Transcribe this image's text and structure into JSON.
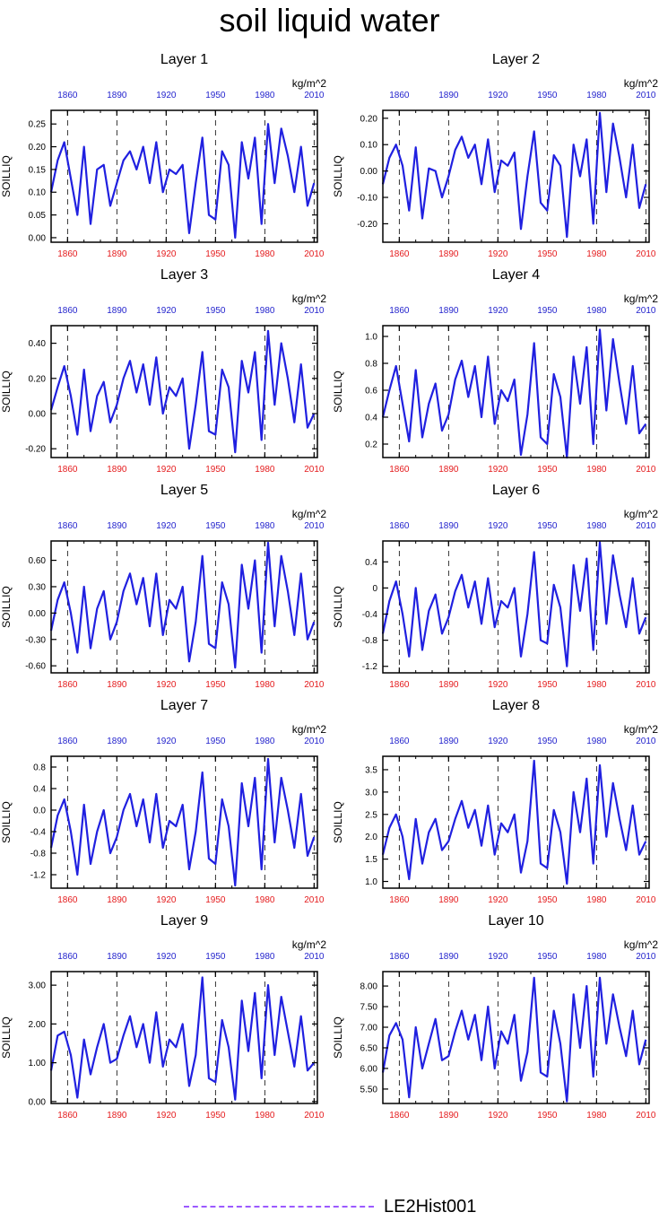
{
  "page": {
    "title": "soil liquid water"
  },
  "legend": {
    "label": "LE2Hist001",
    "color": "#9b59ff"
  },
  "colors": {
    "bottom_ticks": "#e41a1c",
    "top_ticks": "#1f1fcc",
    "series": "#2020e0",
    "axes": "#000000"
  },
  "chart_data": [
    {
      "type": "line",
      "title": "Layer 1",
      "ylabel": "SOILLIQ",
      "units": "kg/m^2",
      "xlim": [
        1850,
        2012
      ],
      "ylim": [
        -0.01,
        0.28
      ],
      "yticks": [
        0.0,
        0.05,
        0.1,
        0.15,
        0.2,
        0.25
      ],
      "ytick_labels": [
        "0.00",
        "0.05",
        "0.10",
        "0.15",
        "0.20",
        "0.25"
      ],
      "xticks": [
        "1860",
        "1890",
        "1920",
        "1950",
        "1980",
        "2010"
      ],
      "vlines": [
        1860,
        1890,
        1920,
        1950,
        1980,
        2010
      ],
      "x": [
        1850,
        1854,
        1858,
        1862,
        1866,
        1870,
        1874,
        1878,
        1882,
        1886,
        1890,
        1894,
        1898,
        1902,
        1906,
        1910,
        1914,
        1918,
        1922,
        1926,
        1930,
        1934,
        1938,
        1942,
        1946,
        1950,
        1954,
        1958,
        1962,
        1966,
        1970,
        1974,
        1978,
        1982,
        1986,
        1990,
        1994,
        1998,
        2002,
        2006,
        2010
      ],
      "y": [
        0.1,
        0.17,
        0.21,
        0.13,
        0.05,
        0.2,
        0.03,
        0.15,
        0.16,
        0.07,
        0.12,
        0.17,
        0.19,
        0.15,
        0.2,
        0.12,
        0.21,
        0.1,
        0.15,
        0.14,
        0.16,
        0.01,
        0.12,
        0.22,
        0.05,
        0.04,
        0.19,
        0.16,
        0.0,
        0.21,
        0.13,
        0.22,
        0.03,
        0.25,
        0.12,
        0.24,
        0.18,
        0.1,
        0.2,
        0.07,
        0.12
      ]
    },
    {
      "type": "line",
      "title": "Layer 2",
      "ylabel": "SOILLIQ",
      "units": "kg/m^2",
      "xlim": [
        1850,
        2012
      ],
      "ylim": [
        -0.27,
        0.23
      ],
      "yticks": [
        -0.2,
        -0.1,
        0.0,
        0.1,
        0.2
      ],
      "ytick_labels": [
        "-0.20",
        "-0.10",
        "0.00",
        "0.10",
        "0.20"
      ],
      "xticks": [
        "1860",
        "1890",
        "1920",
        "1950",
        "1980",
        "2010"
      ],
      "vlines": [
        1860,
        1890,
        1920,
        1950,
        1980,
        2010
      ],
      "x": [
        1850,
        1854,
        1858,
        1862,
        1866,
        1870,
        1874,
        1878,
        1882,
        1886,
        1890,
        1894,
        1898,
        1902,
        1906,
        1910,
        1914,
        1918,
        1922,
        1926,
        1930,
        1934,
        1938,
        1942,
        1946,
        1950,
        1954,
        1958,
        1962,
        1966,
        1970,
        1974,
        1978,
        1982,
        1986,
        1990,
        1994,
        1998,
        2002,
        2006,
        2010
      ],
      "y": [
        -0.05,
        0.05,
        0.1,
        0.02,
        -0.15,
        0.09,
        -0.18,
        0.01,
        0.0,
        -0.1,
        -0.02,
        0.08,
        0.13,
        0.05,
        0.1,
        -0.05,
        0.12,
        -0.08,
        0.04,
        0.02,
        0.07,
        -0.22,
        -0.02,
        0.15,
        -0.12,
        -0.15,
        0.06,
        0.02,
        -0.25,
        0.1,
        -0.02,
        0.12,
        -0.2,
        0.22,
        -0.08,
        0.18,
        0.05,
        -0.1,
        0.1,
        -0.14,
        -0.05
      ]
    },
    {
      "type": "line",
      "title": "Layer 3",
      "ylabel": "SOILLIQ",
      "units": "kg/m^2",
      "xlim": [
        1850,
        2012
      ],
      "ylim": [
        -0.25,
        0.5
      ],
      "yticks": [
        -0.2,
        0.0,
        0.2,
        0.4
      ],
      "ytick_labels": [
        "-0.20",
        "0.00",
        "0.20",
        "0.40"
      ],
      "xticks": [
        "1860",
        "1890",
        "1920",
        "1950",
        "1980",
        "2010"
      ],
      "vlines": [
        1860,
        1890,
        1920,
        1950,
        1980,
        2010
      ],
      "x": [
        1850,
        1854,
        1858,
        1862,
        1866,
        1870,
        1874,
        1878,
        1882,
        1886,
        1890,
        1894,
        1898,
        1902,
        1906,
        1910,
        1914,
        1918,
        1922,
        1926,
        1930,
        1934,
        1938,
        1942,
        1946,
        1950,
        1954,
        1958,
        1962,
        1966,
        1970,
        1974,
        1978,
        1982,
        1986,
        1990,
        1994,
        1998,
        2002,
        2006,
        2010
      ],
      "y": [
        0.02,
        0.15,
        0.27,
        0.1,
        -0.12,
        0.25,
        -0.1,
        0.1,
        0.18,
        -0.05,
        0.05,
        0.2,
        0.3,
        0.12,
        0.28,
        0.05,
        0.32,
        0.0,
        0.15,
        0.1,
        0.2,
        -0.2,
        0.05,
        0.35,
        -0.1,
        -0.12,
        0.25,
        0.15,
        -0.22,
        0.3,
        0.12,
        0.35,
        -0.15,
        0.47,
        0.05,
        0.4,
        0.2,
        -0.05,
        0.28,
        -0.08,
        0.0
      ]
    },
    {
      "type": "line",
      "title": "Layer 4",
      "ylabel": "SOILLIQ",
      "units": "kg/m^2",
      "xlim": [
        1850,
        2012
      ],
      "ylim": [
        0.1,
        1.08
      ],
      "yticks": [
        0.2,
        0.4,
        0.6,
        0.8,
        1.0
      ],
      "ytick_labels": [
        "0.2",
        "0.4",
        "0.6",
        "0.8",
        "1.0"
      ],
      "xticks": [
        "1860",
        "1890",
        "1920",
        "1950",
        "1980",
        "2010"
      ],
      "vlines": [
        1860,
        1890,
        1920,
        1950,
        1980,
        2010
      ],
      "x": [
        1850,
        1854,
        1858,
        1862,
        1866,
        1870,
        1874,
        1878,
        1882,
        1886,
        1890,
        1894,
        1898,
        1902,
        1906,
        1910,
        1914,
        1918,
        1922,
        1926,
        1930,
        1934,
        1938,
        1942,
        1946,
        1950,
        1954,
        1958,
        1962,
        1966,
        1970,
        1974,
        1978,
        1982,
        1986,
        1990,
        1994,
        1998,
        2002,
        2006,
        2010
      ],
      "y": [
        0.4,
        0.6,
        0.78,
        0.5,
        0.22,
        0.75,
        0.25,
        0.5,
        0.65,
        0.3,
        0.42,
        0.68,
        0.82,
        0.55,
        0.78,
        0.4,
        0.85,
        0.35,
        0.6,
        0.52,
        0.68,
        0.12,
        0.42,
        0.95,
        0.25,
        0.2,
        0.72,
        0.55,
        0.1,
        0.85,
        0.5,
        0.92,
        0.2,
        1.05,
        0.45,
        0.98,
        0.65,
        0.35,
        0.78,
        0.28,
        0.35
      ]
    },
    {
      "type": "line",
      "title": "Layer 5",
      "ylabel": "SOILLIQ",
      "units": "kg/m^2",
      "xlim": [
        1850,
        2012
      ],
      "ylim": [
        -0.68,
        0.82
      ],
      "yticks": [
        -0.6,
        -0.3,
        0.0,
        0.3,
        0.6
      ],
      "ytick_labels": [
        "-0.60",
        "-0.30",
        "0.00",
        "0.30",
        "0.60"
      ],
      "xticks": [
        "1860",
        "1890",
        "1920",
        "1950",
        "1980",
        "2010"
      ],
      "vlines": [
        1860,
        1890,
        1920,
        1950,
        1980,
        2010
      ],
      "x": [
        1850,
        1854,
        1858,
        1862,
        1866,
        1870,
        1874,
        1878,
        1882,
        1886,
        1890,
        1894,
        1898,
        1902,
        1906,
        1910,
        1914,
        1918,
        1922,
        1926,
        1930,
        1934,
        1938,
        1942,
        1946,
        1950,
        1954,
        1958,
        1962,
        1966,
        1970,
        1974,
        1978,
        1982,
        1986,
        1990,
        1994,
        1998,
        2002,
        2006,
        2010
      ],
      "y": [
        -0.2,
        0.15,
        0.35,
        0.0,
        -0.45,
        0.3,
        -0.4,
        0.05,
        0.25,
        -0.3,
        -0.1,
        0.25,
        0.45,
        0.1,
        0.4,
        -0.15,
        0.45,
        -0.25,
        0.15,
        0.05,
        0.3,
        -0.55,
        -0.1,
        0.65,
        -0.35,
        -0.4,
        0.35,
        0.1,
        -0.62,
        0.55,
        0.05,
        0.6,
        -0.45,
        0.8,
        -0.15,
        0.65,
        0.25,
        -0.25,
        0.45,
        -0.3,
        -0.1
      ]
    },
    {
      "type": "line",
      "title": "Layer 6",
      "ylabel": "SOILLIQ",
      "units": "kg/m^2",
      "xlim": [
        1850,
        2012
      ],
      "ylim": [
        -1.3,
        0.72
      ],
      "yticks": [
        -1.2,
        -0.8,
        -0.4,
        0.0,
        0.4
      ],
      "ytick_labels": [
        "-1.2",
        "-0.8",
        "-0.4",
        "0",
        "0.4"
      ],
      "xticks": [
        "1860",
        "1890",
        "1920",
        "1950",
        "1980",
        "2010"
      ],
      "vlines": [
        1860,
        1890,
        1920,
        1950,
        1980,
        2010
      ],
      "x": [
        1850,
        1854,
        1858,
        1862,
        1866,
        1870,
        1874,
        1878,
        1882,
        1886,
        1890,
        1894,
        1898,
        1902,
        1906,
        1910,
        1914,
        1918,
        1922,
        1926,
        1930,
        1934,
        1938,
        1942,
        1946,
        1950,
        1954,
        1958,
        1962,
        1966,
        1970,
        1974,
        1978,
        1982,
        1986,
        1990,
        1994,
        1998,
        2002,
        2006,
        2010
      ],
      "y": [
        -0.7,
        -0.2,
        0.1,
        -0.4,
        -1.05,
        0.0,
        -0.95,
        -0.35,
        -0.1,
        -0.7,
        -0.45,
        -0.05,
        0.2,
        -0.3,
        0.1,
        -0.55,
        0.15,
        -0.6,
        -0.2,
        -0.3,
        0.0,
        -1.05,
        -0.4,
        0.55,
        -0.8,
        -0.85,
        0.05,
        -0.3,
        -1.2,
        0.35,
        -0.35,
        0.45,
        -0.95,
        0.7,
        -0.55,
        0.5,
        -0.1,
        -0.6,
        0.15,
        -0.7,
        -0.45
      ]
    },
    {
      "type": "line",
      "title": "Layer 7",
      "ylabel": "SOILLIQ",
      "units": "kg/m^2",
      "xlim": [
        1850,
        2012
      ],
      "ylim": [
        -1.45,
        1.0
      ],
      "yticks": [
        -1.2,
        -0.8,
        -0.4,
        0.0,
        0.4,
        0.8
      ],
      "ytick_labels": [
        "-1.2",
        "-0.8",
        "-0.4",
        "0.0",
        "0.4",
        "0.8"
      ],
      "xticks": [
        "1860",
        "1890",
        "1920",
        "1950",
        "1980",
        "2010"
      ],
      "vlines": [
        1860,
        1890,
        1920,
        1950,
        1980,
        2010
      ],
      "x": [
        1850,
        1854,
        1858,
        1862,
        1866,
        1870,
        1874,
        1878,
        1882,
        1886,
        1890,
        1894,
        1898,
        1902,
        1906,
        1910,
        1914,
        1918,
        1922,
        1926,
        1930,
        1934,
        1938,
        1942,
        1946,
        1950,
        1954,
        1958,
        1962,
        1966,
        1970,
        1974,
        1978,
        1982,
        1986,
        1990,
        1994,
        1998,
        2002,
        2006,
        2010
      ],
      "y": [
        -0.7,
        -0.1,
        0.2,
        -0.4,
        -1.2,
        0.1,
        -1.0,
        -0.4,
        0.0,
        -0.8,
        -0.5,
        0.0,
        0.3,
        -0.3,
        0.2,
        -0.6,
        0.3,
        -0.7,
        -0.2,
        -0.3,
        0.1,
        -1.1,
        -0.4,
        0.7,
        -0.9,
        -1.0,
        0.2,
        -0.3,
        -1.4,
        0.5,
        -0.3,
        0.6,
        -1.1,
        0.95,
        -0.6,
        0.6,
        0.0,
        -0.7,
        0.3,
        -0.85,
        -0.5
      ]
    },
    {
      "type": "line",
      "title": "Layer 8",
      "ylabel": "SOILLIQ",
      "units": "kg/m^2",
      "xlim": [
        1850,
        2012
      ],
      "ylim": [
        0.85,
        3.8
      ],
      "yticks": [
        1.0,
        1.5,
        2.0,
        2.5,
        3.0,
        3.5
      ],
      "ytick_labels": [
        "1.0",
        "1.5",
        "2.0",
        "2.5",
        "3.0",
        "3.5"
      ],
      "xticks": [
        "1860",
        "1890",
        "1920",
        "1950",
        "1980",
        "2010"
      ],
      "vlines": [
        1860,
        1890,
        1920,
        1950,
        1980,
        2010
      ],
      "x": [
        1850,
        1854,
        1858,
        1862,
        1866,
        1870,
        1874,
        1878,
        1882,
        1886,
        1890,
        1894,
        1898,
        1902,
        1906,
        1910,
        1914,
        1918,
        1922,
        1926,
        1930,
        1934,
        1938,
        1942,
        1946,
        1950,
        1954,
        1958,
        1962,
        1966,
        1970,
        1974,
        1978,
        1982,
        1986,
        1990,
        1994,
        1998,
        2002,
        2006,
        2010
      ],
      "y": [
        1.6,
        2.2,
        2.5,
        2.0,
        1.05,
        2.4,
        1.4,
        2.1,
        2.4,
        1.7,
        1.9,
        2.4,
        2.8,
        2.2,
        2.6,
        1.8,
        2.7,
        1.6,
        2.3,
        2.1,
        2.5,
        1.2,
        1.9,
        3.7,
        1.4,
        1.3,
        2.6,
        2.1,
        0.95,
        3.0,
        2.1,
        3.3,
        1.4,
        3.6,
        2.0,
        3.2,
        2.4,
        1.7,
        2.7,
        1.6,
        1.9
      ]
    },
    {
      "type": "line",
      "title": "Layer 9",
      "ylabel": "SOILLIQ",
      "units": "kg/m^2",
      "xlim": [
        1850,
        2012
      ],
      "ylim": [
        -0.05,
        3.35
      ],
      "yticks": [
        0.0,
        1.0,
        2.0,
        3.0
      ],
      "ytick_labels": [
        "0.00",
        "1.00",
        "2.00",
        "3.00"
      ],
      "xticks": [
        "1860",
        "1890",
        "1920",
        "1950",
        "1980",
        "2010"
      ],
      "vlines": [
        1860,
        1890,
        1920,
        1950,
        1980,
        2010
      ],
      "x": [
        1850,
        1854,
        1858,
        1862,
        1866,
        1870,
        1874,
        1878,
        1882,
        1886,
        1890,
        1894,
        1898,
        1902,
        1906,
        1910,
        1914,
        1918,
        1922,
        1926,
        1930,
        1934,
        1938,
        1942,
        1946,
        1950,
        1954,
        1958,
        1962,
        1966,
        1970,
        1974,
        1978,
        1982,
        1986,
        1990,
        1994,
        1998,
        2002,
        2006,
        2010
      ],
      "y": [
        0.8,
        1.7,
        1.8,
        1.2,
        0.1,
        1.6,
        0.7,
        1.4,
        2.0,
        1.0,
        1.1,
        1.7,
        2.2,
        1.4,
        2.0,
        1.0,
        2.3,
        0.9,
        1.6,
        1.4,
        2.0,
        0.4,
        1.2,
        3.2,
        0.6,
        0.5,
        2.1,
        1.4,
        0.05,
        2.6,
        1.3,
        2.8,
        0.6,
        3.0,
        1.2,
        2.7,
        1.8,
        0.9,
        2.2,
        0.8,
        1.0
      ]
    },
    {
      "type": "line",
      "title": "Layer 10",
      "ylabel": "SOILLIQ",
      "units": "kg/m^2",
      "xlim": [
        1850,
        2012
      ],
      "ylim": [
        5.15,
        8.35
      ],
      "yticks": [
        5.5,
        6.0,
        6.5,
        7.0,
        7.5,
        8.0
      ],
      "ytick_labels": [
        "5.50",
        "6.00",
        "6.50",
        "7.00",
        "7.50",
        "8.00"
      ],
      "xticks": [
        "1860",
        "1890",
        "1920",
        "1950",
        "1980",
        "2010"
      ],
      "vlines": [
        1860,
        1890,
        1920,
        1950,
        1980,
        2010
      ],
      "x": [
        1850,
        1854,
        1858,
        1862,
        1866,
        1870,
        1874,
        1878,
        1882,
        1886,
        1890,
        1894,
        1898,
        1902,
        1906,
        1910,
        1914,
        1918,
        1922,
        1926,
        1930,
        1934,
        1938,
        1942,
        1946,
        1950,
        1954,
        1958,
        1962,
        1966,
        1970,
        1974,
        1978,
        1982,
        1986,
        1990,
        1994,
        1998,
        2002,
        2006,
        2010
      ],
      "y": [
        5.9,
        6.8,
        7.1,
        6.7,
        5.3,
        7.0,
        6.0,
        6.6,
        7.2,
        6.2,
        6.3,
        6.9,
        7.4,
        6.7,
        7.3,
        6.2,
        7.5,
        6.0,
        6.9,
        6.6,
        7.3,
        5.7,
        6.4,
        8.2,
        5.9,
        5.8,
        7.4,
        6.6,
        5.2,
        7.8,
        6.5,
        8.0,
        5.8,
        8.2,
        6.6,
        7.8,
        7.0,
        6.3,
        7.4,
        6.1,
        6.7
      ]
    }
  ]
}
